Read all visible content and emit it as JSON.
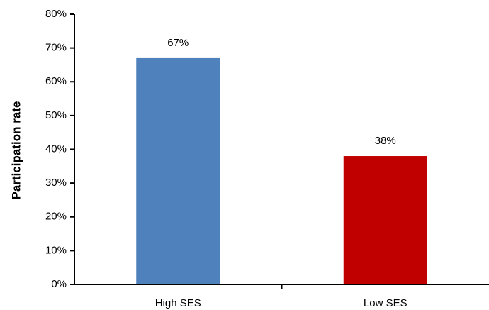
{
  "chart_data": {
    "type": "bar",
    "title": "",
    "xlabel": "",
    "ylabel": "Participation rate",
    "categories": [
      "High SES",
      "Low SES"
    ],
    "values": [
      67,
      38
    ],
    "data_labels": [
      "67%",
      "38%"
    ],
    "colors": [
      "#4F81BD",
      "#C00000"
    ],
    "ylim": [
      0,
      80
    ],
    "ytick_step": 10,
    "ytick_labels": [
      "0%",
      "10%",
      "20%",
      "30%",
      "40%",
      "50%",
      "60%",
      "70%",
      "80%"
    ],
    "grid": false,
    "legend": "none"
  }
}
